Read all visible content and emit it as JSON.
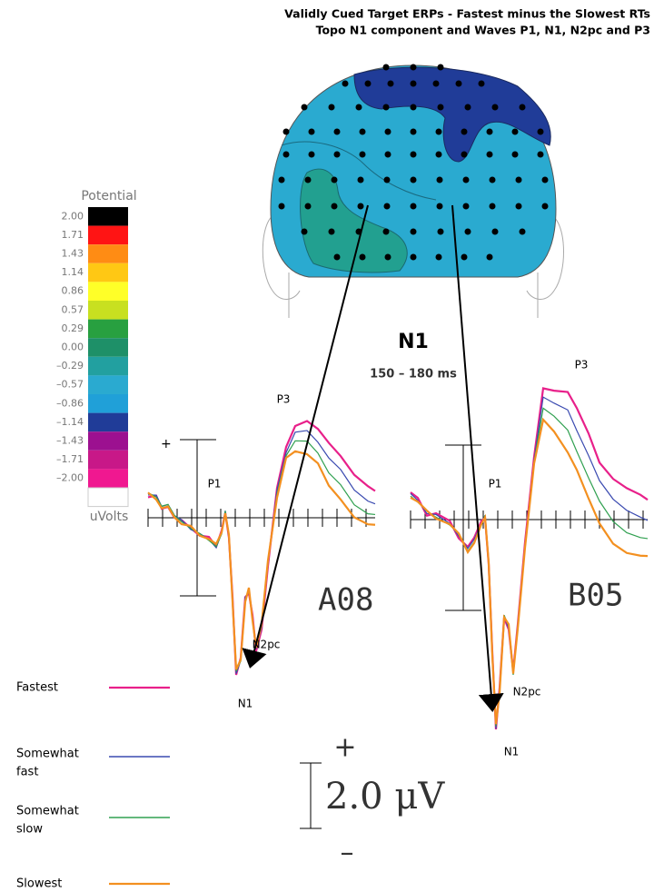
{
  "header": {
    "title_lines": [
      "Validly Cued Target ERPs - Fastest minus the Slowest RTs",
      "Topo N1 component and Waves P1, N1, N2pc and P3"
    ]
  },
  "color_scale": {
    "title": "Potential",
    "unit": "uVolts",
    "entries": [
      {
        "label": "2.00",
        "color": "#000000"
      },
      {
        "label": "1.71",
        "color": "#ff1414"
      },
      {
        "label": "1.43",
        "color": "#ff8c14"
      },
      {
        "label": "1.14",
        "color": "#ffc814"
      },
      {
        "label": "0.86",
        "color": "#ffff28"
      },
      {
        "label": "0.57",
        "color": "#c8e020"
      },
      {
        "label": "0.29",
        "color": "#28a040"
      },
      {
        "label": "0.00",
        "color": "#1e9068"
      },
      {
        "label": "–0.29",
        "color": "#22a0a0"
      },
      {
        "label": "–0.57",
        "color": "#2aaad0"
      },
      {
        "label": "–0.86",
        "color": "#20a0d8"
      },
      {
        "label": "–1.14",
        "color": "#203c98"
      },
      {
        "label": "–1.43",
        "color": "#9c1090"
      },
      {
        "label": "–1.71",
        "color": "#c81888"
      },
      {
        "label": "–2.00",
        "color": "#f01890"
      }
    ]
  },
  "topomap": {
    "component": "N1",
    "window": "150 – 180 ms"
  },
  "panels": [
    {
      "electrode": "A08",
      "polarity": "+",
      "peaks": [
        "P1",
        "N1",
        "N2pc",
        "P3"
      ]
    },
    {
      "electrode": "B05",
      "peaks": [
        "P1",
        "N1",
        "N2pc",
        "P3"
      ]
    }
  ],
  "legend": [
    {
      "label_lines": [
        "Fastest"
      ],
      "color": "#e8208a"
    },
    {
      "label_lines": [
        "Somewhat",
        "fast"
      ],
      "color": "#3a4ab0"
    },
    {
      "label_lines": [
        "Somewhat",
        "slow"
      ],
      "color": "#30a050"
    },
    {
      "label_lines": [
        "Slowest"
      ],
      "color": "#f39020"
    }
  ],
  "scale_bar": {
    "plus": "+",
    "label": "2.0 μV",
    "minus": "–"
  }
}
